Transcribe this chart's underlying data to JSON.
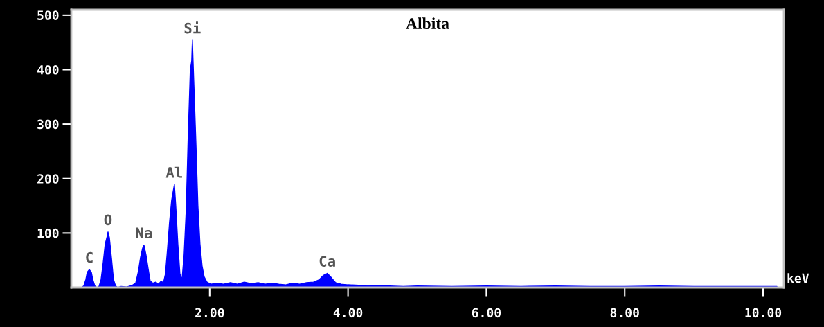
{
  "chart_data": {
    "type": "area",
    "title": "Albita",
    "xlabel": "keV",
    "x": [
      0.15,
      0.18,
      0.21,
      0.23,
      0.26,
      0.29,
      0.31,
      0.34,
      0.37,
      0.4,
      0.43,
      0.46,
      0.49,
      0.52,
      0.53,
      0.55,
      0.58,
      0.61,
      0.64,
      0.67,
      0.72,
      0.8,
      0.88,
      0.93,
      0.97,
      1.0,
      1.03,
      1.05,
      1.08,
      1.11,
      1.14,
      1.18,
      1.22,
      1.26,
      1.3,
      1.33,
      1.36,
      1.39,
      1.42,
      1.45,
      1.47,
      1.49,
      1.51,
      1.54,
      1.57,
      1.6,
      1.63,
      1.66,
      1.69,
      1.72,
      1.74,
      1.75,
      1.77,
      1.8,
      1.83,
      1.86,
      1.89,
      1.92,
      1.96,
      2.02,
      2.1,
      2.2,
      2.3,
      2.4,
      2.5,
      2.6,
      2.7,
      2.8,
      2.9,
      3.0,
      3.1,
      3.2,
      3.3,
      3.4,
      3.5,
      3.58,
      3.64,
      3.7,
      3.76,
      3.82,
      3.9,
      4.0,
      4.2,
      4.4,
      4.6,
      4.8,
      5.0,
      5.5,
      6.0,
      6.5,
      7.0,
      7.5,
      8.0,
      8.5,
      9.0,
      9.5,
      10.0,
      10.2
    ],
    "series": [
      {
        "color": "#0000ff",
        "values": [
          0,
          3,
          15,
          28,
          33,
          28,
          15,
          3,
          0,
          2,
          15,
          45,
          80,
          95,
          102,
          92,
          55,
          15,
          3,
          0,
          2,
          1,
          4,
          8,
          30,
          55,
          72,
          78,
          60,
          35,
          12,
          8,
          10,
          6,
          12,
          8,
          25,
          70,
          120,
          160,
          175,
          189,
          150,
          80,
          25,
          15,
          60,
          140,
          280,
          400,
          416,
          454,
          380,
          270,
          150,
          80,
          40,
          20,
          10,
          6,
          8,
          6,
          9,
          6,
          10,
          7,
          9,
          6,
          8,
          6,
          5,
          8,
          6,
          9,
          10,
          14,
          22,
          26,
          18,
          9,
          6,
          5,
          4,
          3,
          3,
          2,
          3,
          2,
          3,
          2,
          3,
          2,
          2,
          3,
          2,
          2,
          2,
          2
        ]
      }
    ],
    "xlim": [
      0,
      10.3
    ],
    "ylim": [
      0,
      510
    ],
    "xticks": [
      {
        "value": 2,
        "label": "2.00"
      },
      {
        "value": 4,
        "label": "4.00"
      },
      {
        "value": 6,
        "label": "6.00"
      },
      {
        "value": 8,
        "label": "8.00"
      },
      {
        "value": 10,
        "label": "10.00"
      }
    ],
    "yticks": [
      100,
      200,
      300,
      400,
      500
    ],
    "annotations": [
      {
        "text": "C",
        "x": 0.26,
        "y": 33
      },
      {
        "text": "O",
        "x": 0.53,
        "y": 102
      },
      {
        "text": "Na",
        "x": 1.05,
        "y": 78
      },
      {
        "text": "Al",
        "x": 1.49,
        "y": 189
      },
      {
        "text": "Si",
        "x": 1.75,
        "y": 454
      },
      {
        "text": "Ca",
        "x": 3.7,
        "y": 26
      }
    ],
    "grid": false,
    "legend": false
  }
}
